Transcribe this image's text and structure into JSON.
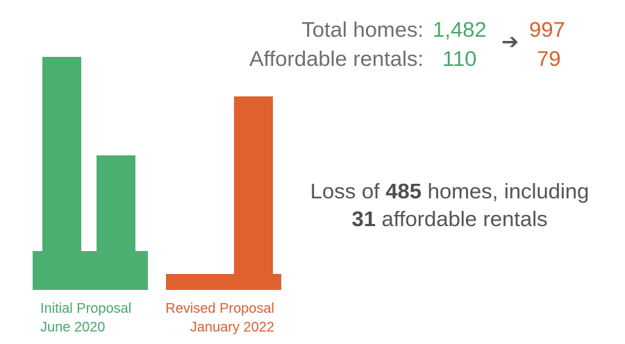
{
  "summary": {
    "rows": [
      {
        "label": "Total homes:",
        "before": "1,482",
        "after": "997"
      },
      {
        "label": "Affordable rentals:",
        "before": "110",
        "after": "79"
      }
    ],
    "arrow": "➔"
  },
  "callout": {
    "line1_prefix": "Loss of ",
    "homes_lost": "485",
    "line1_suffix": " homes, including",
    "rentals_lost": "31",
    "line2_suffix": " affordable rentals"
  },
  "chart_data": {
    "type": "bar",
    "title": "",
    "xlabel": "",
    "ylabel": "",
    "colors": {
      "initial": "#4caf72",
      "revised": "#e06030",
      "text_initial": "#45a86a",
      "text_revised": "#d9602f"
    },
    "groups": [
      {
        "name": "Initial Proposal",
        "date": "June 2020",
        "color": "#4caf72",
        "total_homes": 1482,
        "affordable_rentals": 110
      },
      {
        "name": "Revised Proposal",
        "date": "January 2022",
        "color": "#e06030",
        "total_homes": 997,
        "affordable_rentals": 79
      }
    ]
  }
}
